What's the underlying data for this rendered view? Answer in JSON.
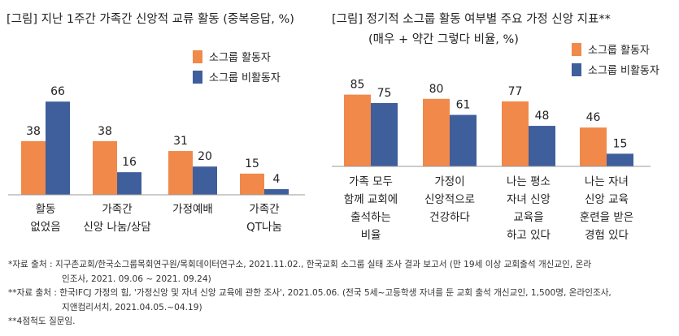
{
  "chart_data": [
    {
      "type": "bar",
      "title": "[그림] 지난 1주간 가족간 신앙적 교류 활동 (중복응답, %)",
      "categories": [
        [
          "활동",
          "없었음"
        ],
        [
          "가족간",
          "신앙 나눔/상담"
        ],
        [
          "가정예배"
        ],
        [
          "가족간",
          "QT나눔"
        ]
      ],
      "series": [
        {
          "name": "소그룹 활동자",
          "color": "#F0894A",
          "values": [
            38,
            38,
            31,
            15
          ]
        },
        {
          "name": "소그룹 비활동자",
          "color": "#3F5E9C",
          "values": [
            66,
            16,
            20,
            4
          ]
        }
      ],
      "ylim": [
        0,
        70
      ],
      "legend": "top-right",
      "grid": false
    },
    {
      "type": "bar",
      "title": "[그림] 정기적 소그룹 활동 여부별 주요 가정 신앙 지표**",
      "subtitle": "(매우 + 약간 그렇다 비율, %)",
      "categories": [
        [
          "가족 모두",
          "함께 교회에",
          "출석하는",
          "비율"
        ],
        [
          "가정이",
          "신앙적으로",
          "건강하다"
        ],
        [
          "나는 평소",
          "자녀 신앙",
          "교육을",
          "하고 있다"
        ],
        [
          "나는 자녀",
          "신앙 교육",
          "훈련을 받은",
          "경험 있다"
        ]
      ],
      "series": [
        {
          "name": "소그룹 활동자",
          "color": "#F0894A",
          "values": [
            85,
            80,
            77,
            46
          ]
        },
        {
          "name": "소그룹 비활동자",
          "color": "#3F5E9C",
          "values": [
            75,
            61,
            48,
            15
          ]
        }
      ],
      "ylim": [
        0,
        90
      ],
      "legend": "top-right",
      "grid": false
    }
  ],
  "notes": [
    "*자료 출처 : 지구촌교회/한국소그룹목회연구원/목회데이터연구소, 2021.11.02., 한국교회 소그룹 실태 조사 결과 보고서 (만 19세 이상 교회출석 개신교인, 온라",
    "인조사, 2021. 09.06 ~ 2021. 09.24)",
    "**자료 출처 : 한국IFCJ 가정의 힘, '가정신앙 및 자녀 신앙 교육에 관한 조사', 2021.05.06. (전국 5세~고등학생 자녀를 둔 교회 출석 개신교인, 1,500명, 온라인조사,",
    "지앤컴리서치, 2021.04.05.~04.19)",
    "**4점척도 질문임."
  ]
}
